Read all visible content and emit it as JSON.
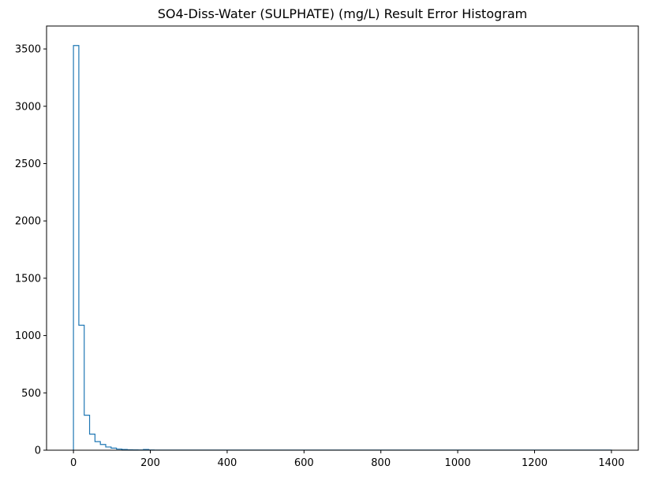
{
  "chart_data": {
    "type": "histogram",
    "title": "SO4-Diss-Water (SULPHATE) (mg/L) Result Error Histogram",
    "xlabel": "",
    "ylabel": "",
    "xlim": [
      -70,
      1470
    ],
    "ylim": [
      0,
      3700
    ],
    "x_ticks": [
      0,
      200,
      400,
      600,
      800,
      1000,
      1200,
      1400
    ],
    "y_ticks": [
      0,
      500,
      1000,
      1500,
      2000,
      2500,
      3000,
      3500
    ],
    "histtype": "step",
    "bin_width": 14,
    "bins_start": 0,
    "bins_end": 1400,
    "series_color": "#1f77b4",
    "counts": [
      3530,
      1090,
      305,
      140,
      75,
      50,
      28,
      18,
      10,
      6,
      4,
      3,
      2,
      6,
      2,
      1,
      1,
      1,
      1,
      1,
      1,
      1,
      1,
      1,
      1,
      1,
      1,
      1,
      1,
      1,
      1,
      1,
      1,
      1,
      1,
      1,
      1,
      1,
      1,
      1,
      1,
      1,
      1,
      1,
      1,
      1,
      1,
      1,
      1,
      1,
      1,
      1,
      1,
      1,
      1,
      1,
      1,
      1,
      1,
      1,
      1,
      1,
      1,
      1,
      1,
      1,
      1,
      1,
      1,
      1,
      1,
      1,
      1,
      1,
      1,
      1,
      1,
      1,
      1,
      1,
      1,
      1,
      1,
      1,
      1,
      1,
      1,
      1,
      1,
      1,
      1,
      1,
      1,
      1,
      1,
      1,
      1,
      1,
      1,
      1
    ]
  }
}
